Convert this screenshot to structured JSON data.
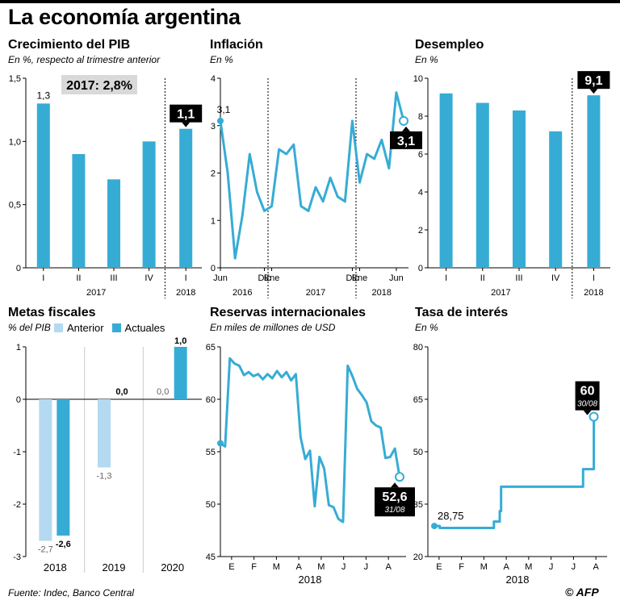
{
  "title": "La economía argentina",
  "source": "Fuente: Indec, Banco Central",
  "logo": "© AFP",
  "colors": {
    "bar": "#36acd5",
    "light": "#b3daf0",
    "line": "#36acd5",
    "axis": "#000000",
    "grid": "#cccccc",
    "label_box": "#000000",
    "note_box": "#d9d9d9"
  },
  "panels": {
    "pib": {
      "title": "Crecimiento del PIB",
      "subtitle": "En %, respecto al trimestre anterior"
    },
    "inflacion": {
      "title": "Inflación",
      "subtitle": "En %"
    },
    "desempleo": {
      "title": "Desempleo",
      "subtitle": "En %"
    },
    "metas": {
      "title": "Metas fiscales",
      "subtitle": "% del PIB",
      "legend_anterior": "Anterior",
      "legend_actuales": "Actuales"
    },
    "reservas": {
      "title": "Reservas internacionales",
      "subtitle": "En miles de millones de USD"
    },
    "tasa": {
      "title": "Tasa de interés",
      "subtitle": "En %"
    }
  },
  "chart_data": [
    {
      "id": "pib",
      "type": "bar",
      "categories": [
        "I",
        "II",
        "III",
        "IV",
        "I"
      ],
      "groups": [
        {
          "label": "2017",
          "from": 0,
          "to": 3
        },
        {
          "label": "2018",
          "from": 4,
          "to": 4
        }
      ],
      "values": [
        1.3,
        0.9,
        0.7,
        1.0,
        1.1
      ],
      "ylim": [
        0,
        1.5
      ],
      "yticks": [
        0,
        0.5,
        1.0,
        1.5
      ],
      "ytick_labels": [
        "0",
        "0,5",
        "1,0",
        "1,5"
      ],
      "first_label": "1,3",
      "last_label": "1,1",
      "note": "2017: 2,8%"
    },
    {
      "id": "inflacion",
      "type": "line",
      "x_labels": [
        "Jun",
        "Dic",
        "Ene",
        "Dic",
        "Ene",
        "Jun"
      ],
      "x_label_index": [
        0,
        6,
        7,
        18,
        19,
        24
      ],
      "years": [
        {
          "label": "2016",
          "at": 3
        },
        {
          "label": "2017",
          "at": 13
        },
        {
          "label": "2018",
          "at": 22
        }
      ],
      "values": [
        3.1,
        2.0,
        0.2,
        1.1,
        2.4,
        1.6,
        1.2,
        1.3,
        2.5,
        2.4,
        2.6,
        1.3,
        1.2,
        1.7,
        1.4,
        1.9,
        1.5,
        1.4,
        3.1,
        1.8,
        2.4,
        2.3,
        2.7,
        2.1,
        3.7,
        3.1
      ],
      "ylim": [
        0,
        4
      ],
      "yticks": [
        0,
        1,
        2,
        3,
        4
      ],
      "first_label": "3,1",
      "last_label": "3,1"
    },
    {
      "id": "desempleo",
      "type": "bar",
      "categories": [
        "I",
        "II",
        "III",
        "IV",
        "I"
      ],
      "groups": [
        {
          "label": "2017",
          "from": 0,
          "to": 3
        },
        {
          "label": "2018",
          "from": 4,
          "to": 4
        }
      ],
      "values": [
        9.2,
        8.7,
        8.3,
        7.2,
        9.1
      ],
      "ylim": [
        0,
        10
      ],
      "yticks": [
        0,
        2,
        4,
        6,
        8,
        10
      ],
      "ytick_labels": [
        "0",
        "2",
        "4",
        "6",
        "8",
        "10"
      ],
      "last_label": "9,1"
    },
    {
      "id": "metas",
      "type": "bar",
      "categories": [
        "2018",
        "2019",
        "2020"
      ],
      "series": [
        {
          "name": "Anterior",
          "values": [
            -2.7,
            -1.3,
            0.0
          ],
          "labels": [
            "-2,7",
            "-1,3",
            "0,0"
          ]
        },
        {
          "name": "Actuales",
          "values": [
            -2.6,
            0.0,
            1.0
          ],
          "labels": [
            "-2,6",
            "0,0",
            "1,0"
          ]
        }
      ],
      "ylim": [
        -3,
        1
      ],
      "yticks": [
        -3,
        -2,
        -1,
        0,
        1
      ],
      "ytick_labels": [
        "-3",
        "-2",
        "-1",
        "0",
        "1"
      ]
    },
    {
      "id": "reservas",
      "type": "line",
      "x_labels": [
        "E",
        "F",
        "M",
        "A",
        "M",
        "J",
        "J",
        "A"
      ],
      "year": "2018",
      "values": [
        55.8,
        55.5,
        63.9,
        63.4,
        63.2,
        62.3,
        62.6,
        62.2,
        62.4,
        61.9,
        62.4,
        62.0,
        62.7,
        62.1,
        62.6,
        61.8,
        62.4,
        56.4,
        54.3,
        55.1,
        49.8,
        54.5,
        53.4,
        49.9,
        49.7,
        48.6,
        48.3,
        63.2,
        62.2,
        61.0,
        60.4,
        59.7,
        57.9,
        57.5,
        57.3,
        54.4,
        54.5,
        55.3,
        52.6
      ],
      "ylim": [
        45,
        65
      ],
      "yticks": [
        45,
        50,
        55,
        60,
        65
      ],
      "last_label": "52,6",
      "last_date": "31/08"
    },
    {
      "id": "tasa",
      "type": "line",
      "x_labels": [
        "E",
        "F",
        "M",
        "A",
        "M",
        "J",
        "J",
        "A"
      ],
      "year": "2018",
      "values": [
        28.75,
        28.2,
        28.2,
        28.2,
        28.2,
        28.2,
        30.0,
        30.0,
        33.0,
        40.0,
        40.0,
        40.0,
        40.0,
        40.0,
        40.0,
        40.0,
        40.0,
        40.0,
        40.0,
        45.0,
        45.0,
        60.0
      ],
      "step_x": [
        0.0,
        0.06,
        0.3,
        0.5,
        0.6,
        0.665,
        0.665,
        0.72,
        0.73,
        0.745,
        0.8,
        0.9,
        1.0,
        1.1,
        1.2,
        1.3,
        1.4,
        1.5,
        1.66,
        1.66,
        1.78,
        1.78
      ],
      "ylim": [
        20,
        80
      ],
      "yticks": [
        20,
        35,
        50,
        65,
        80
      ],
      "first_label": "28,75",
      "last_label": "60",
      "last_date": "30/08"
    }
  ]
}
